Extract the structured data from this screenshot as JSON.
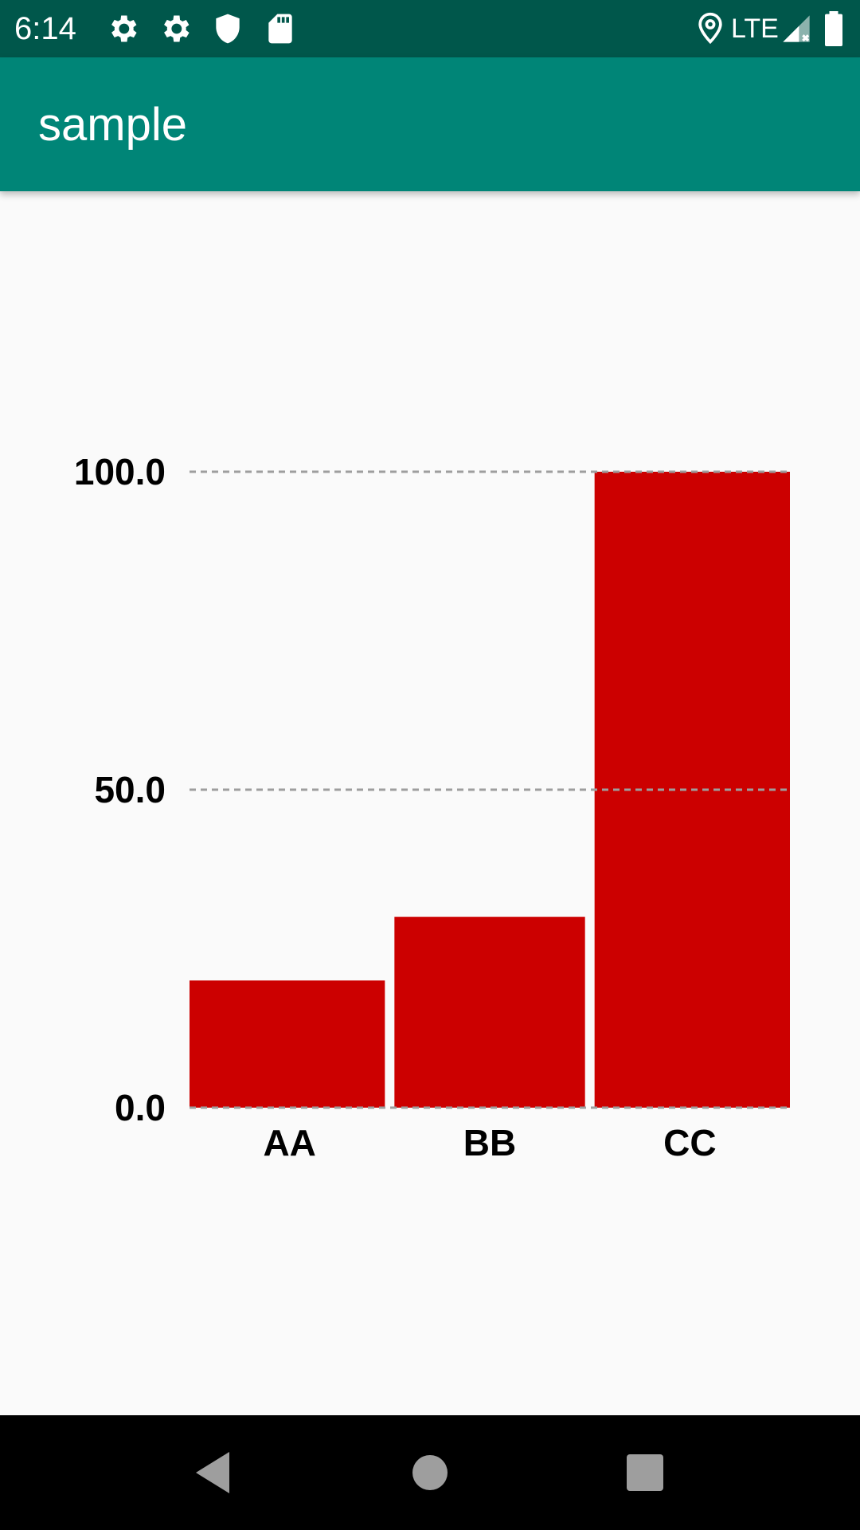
{
  "status_bar": {
    "time": "6:14",
    "network": "LTE",
    "icons": [
      "settings-icon",
      "settings-icon",
      "shield-icon",
      "sd-card-icon",
      "location-icon",
      "signal-icon",
      "battery-icon"
    ]
  },
  "app_bar": {
    "title": "sample",
    "color": "#008577"
  },
  "nav_bar": {
    "icons": [
      "back-icon",
      "home-icon",
      "recents-icon"
    ]
  },
  "chart_data": {
    "type": "bar",
    "categories": [
      "AA",
      "BB",
      "CC"
    ],
    "values": [
      20,
      30,
      100
    ],
    "ylim": [
      0,
      100
    ],
    "yticks": [
      0,
      50,
      100
    ],
    "ytick_labels": [
      "0.0",
      "50.0",
      "100.0"
    ],
    "grid": true,
    "bar_color": "#cc0000",
    "grid_color": "#9e9e9e"
  }
}
